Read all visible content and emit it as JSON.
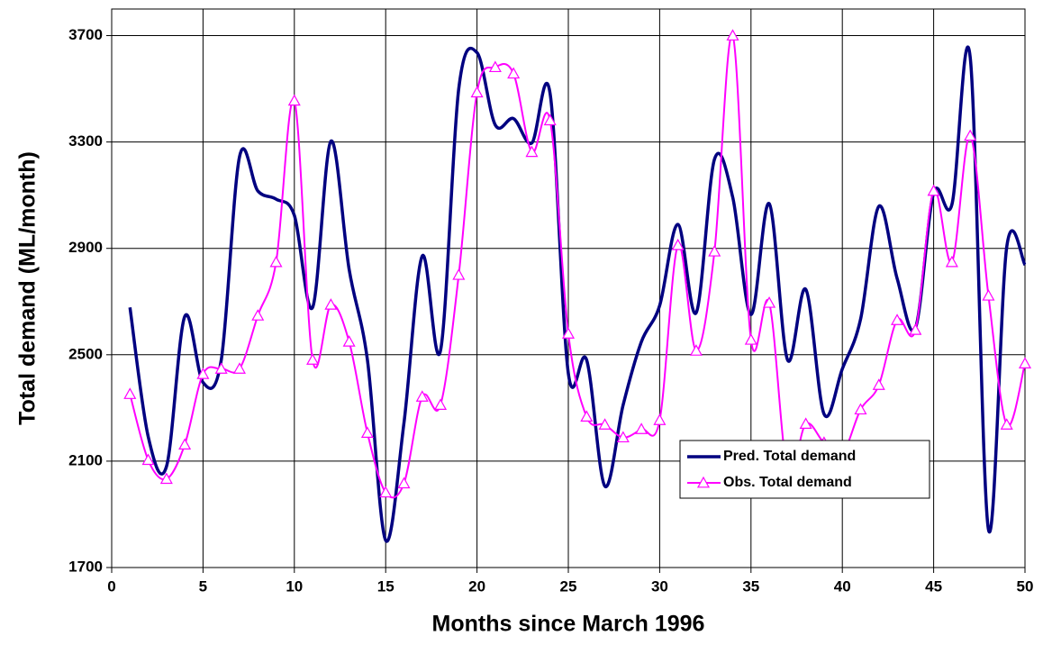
{
  "chart_data": {
    "type": "line",
    "x_label": "Months since March 1996",
    "y_label": "Total demand (ML/month)",
    "x": [
      1,
      2,
      3,
      4,
      5,
      6,
      7,
      8,
      9,
      10,
      11,
      12,
      13,
      14,
      15,
      16,
      17,
      18,
      19,
      20,
      21,
      22,
      23,
      24,
      25,
      26,
      27,
      28,
      29,
      30,
      31,
      32,
      33,
      34,
      35,
      36,
      37,
      38,
      39,
      40,
      41,
      42,
      43,
      44,
      45,
      46,
      47,
      48,
      49,
      50
    ],
    "series": [
      {
        "name": "Pred. Total demand",
        "color": "#000080",
        "marker": "none",
        "smooth": true,
        "values": [
          2678,
          2192,
          2080,
          2644,
          2396,
          2481,
          3245,
          3116,
          3085,
          3024,
          2678,
          3303,
          2821,
          2481,
          1802,
          2243,
          2871,
          2515,
          3500,
          3636,
          3364,
          3388,
          3296,
          3483,
          2430,
          2481,
          2006,
          2311,
          2549,
          2685,
          2990,
          2658,
          3235,
          3092,
          2651,
          3068,
          2481,
          2746,
          2277,
          2447,
          2634,
          3058,
          2787,
          2600,
          3109,
          3065,
          3619,
          1843,
          2905,
          2838
        ]
      },
      {
        "name": "Obs. Total demand",
        "color": "#ff00ff",
        "marker": "triangle",
        "smooth": true,
        "values": [
          2352,
          2104,
          2033,
          2162,
          2427,
          2447,
          2447,
          2647,
          2848,
          3455,
          2481,
          2688,
          2549,
          2206,
          1982,
          2016,
          2342,
          2311,
          2800,
          3486,
          3581,
          3557,
          3262,
          3381,
          2579,
          2267,
          2237,
          2189,
          2220,
          2254,
          2912,
          2515,
          2888,
          3700,
          2556,
          2695,
          2063,
          2240,
          2169,
          2128,
          2294,
          2386,
          2630,
          2593,
          3116,
          2848,
          3323,
          2722,
          2237,
          2467
        ]
      }
    ],
    "xlim": [
      0,
      50
    ],
    "xticks": [
      0,
      5,
      10,
      15,
      20,
      25,
      30,
      35,
      40,
      45,
      50
    ],
    "ylim": [
      1700,
      3800
    ],
    "yticks": [
      1700,
      2100,
      2500,
      2900,
      3300,
      3700
    ],
    "grid": true,
    "legend": "lower right"
  }
}
